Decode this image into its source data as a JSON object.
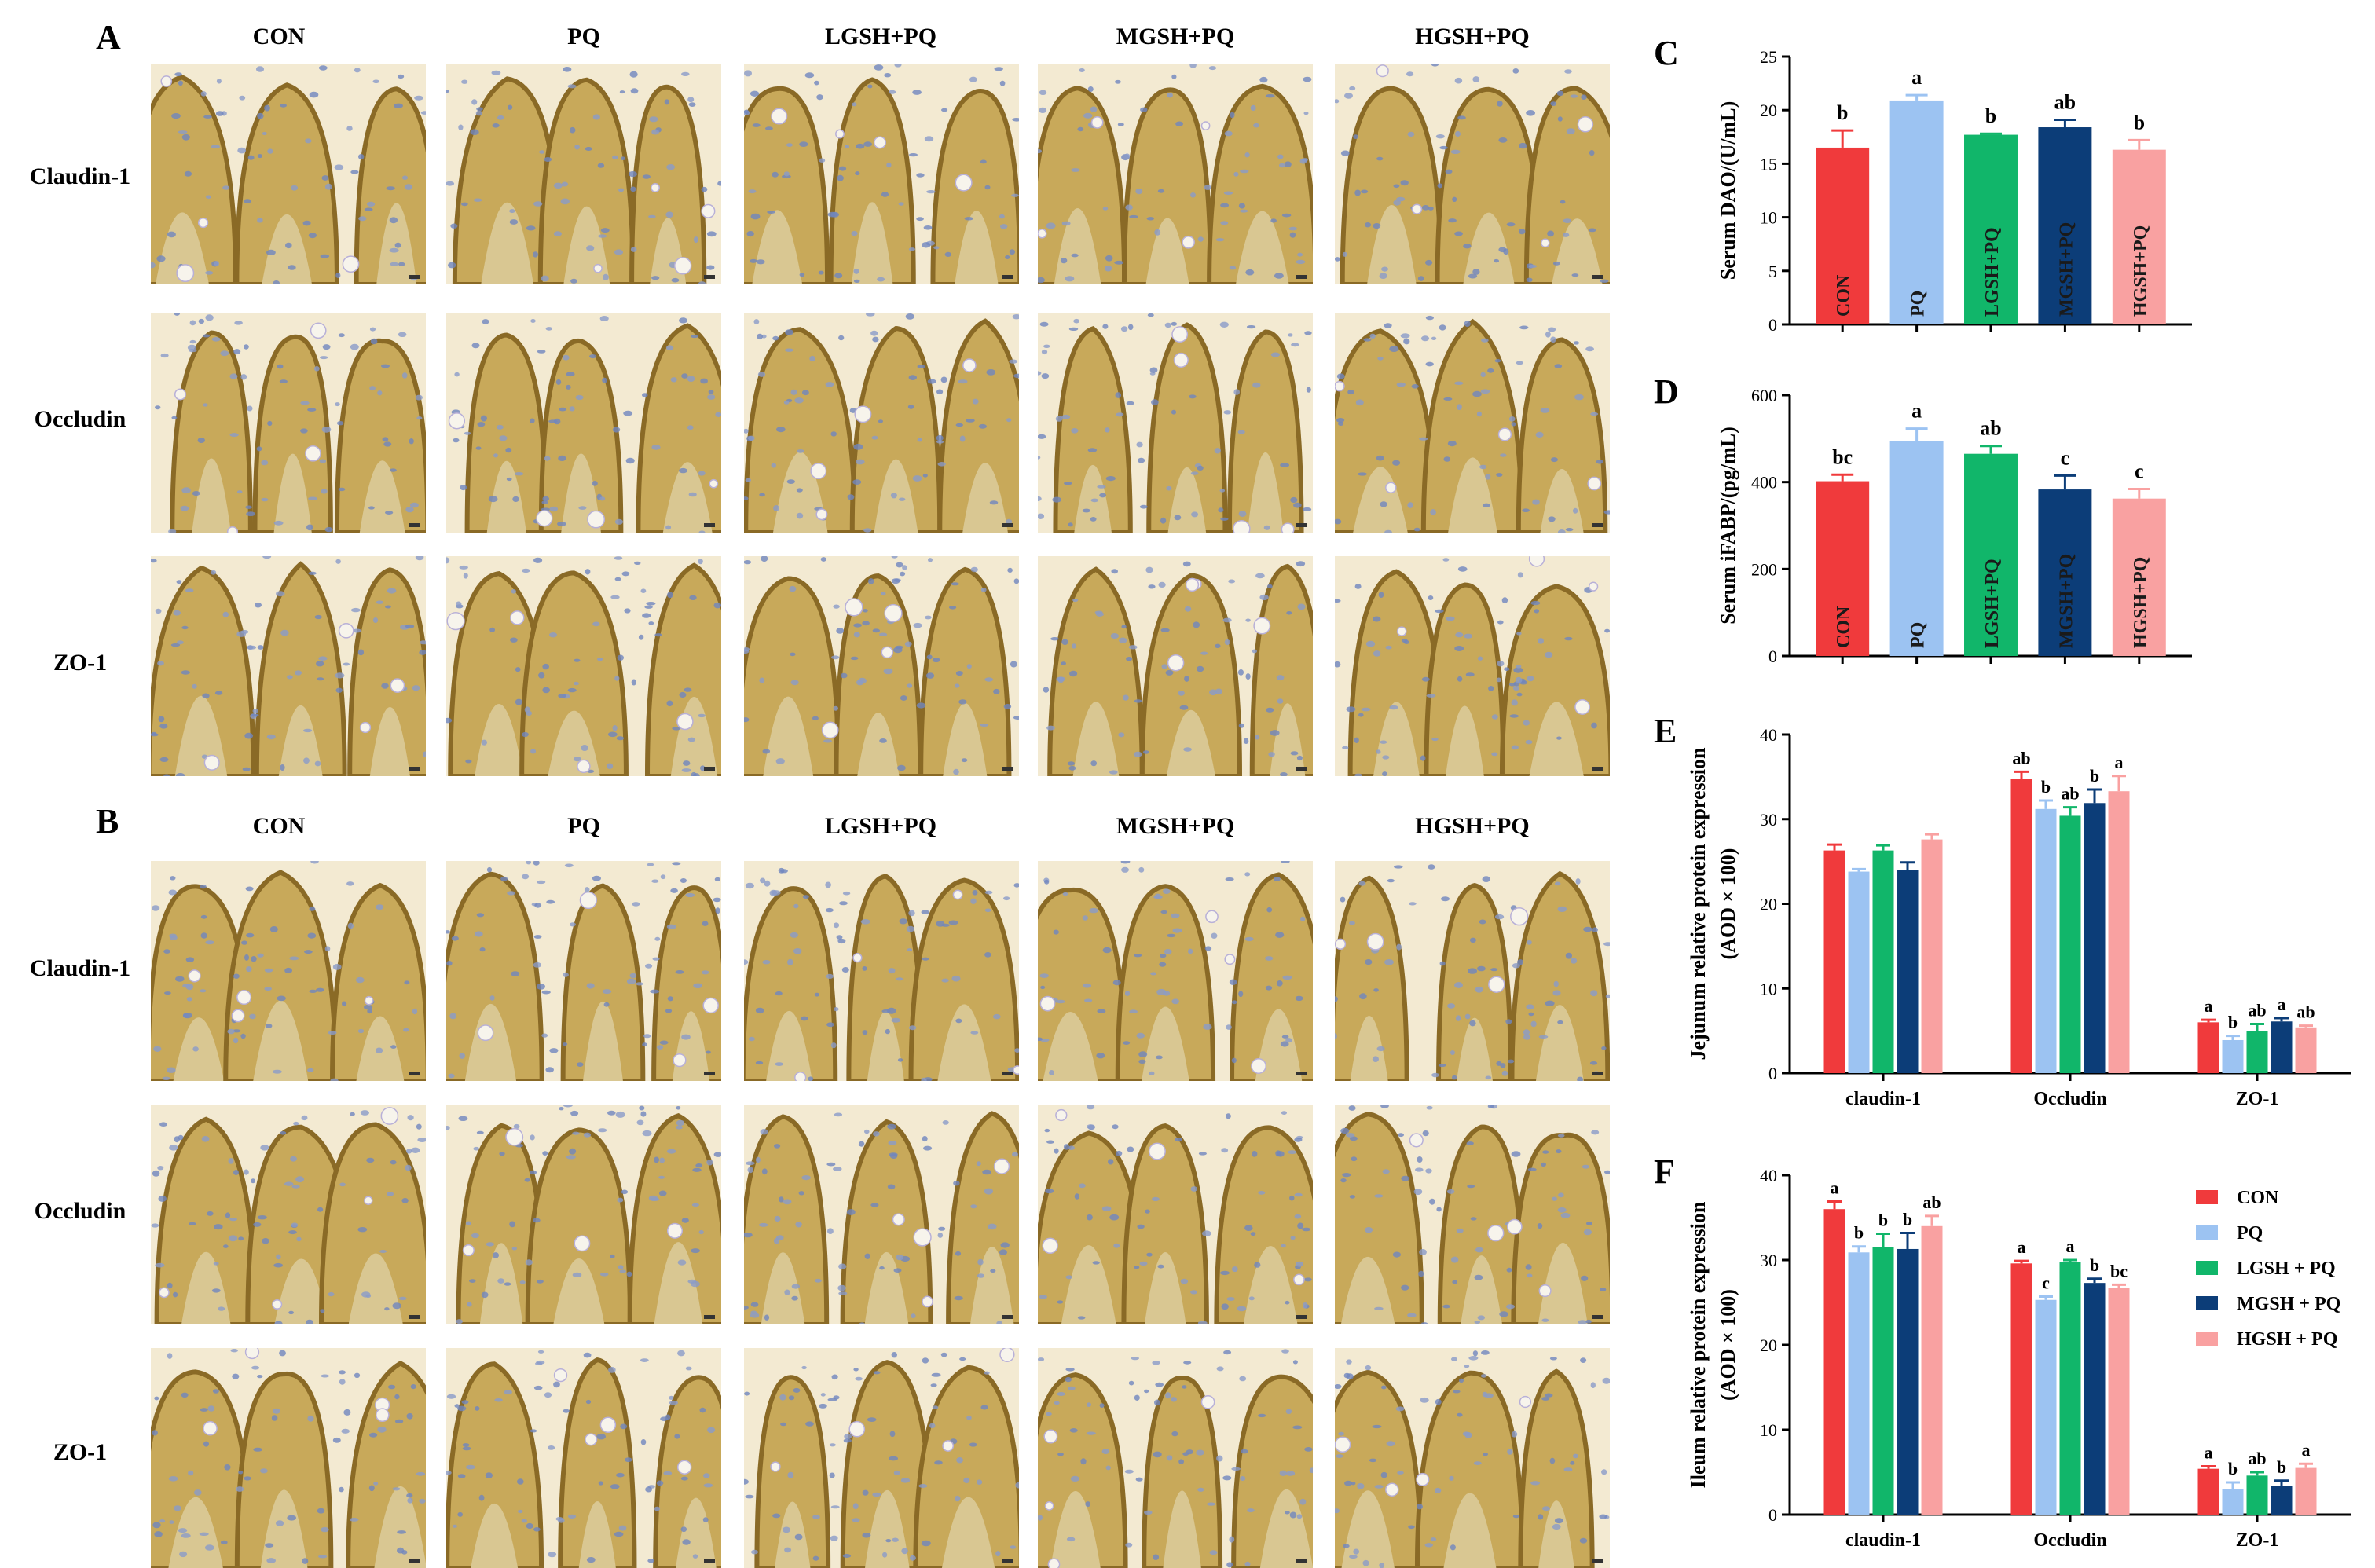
{
  "figure": {
    "panel_A": {
      "letter": "A",
      "columns": [
        "CON",
        "PQ",
        "LGSH+PQ",
        "MGSH+PQ",
        "HGSH+PQ"
      ],
      "rows": [
        "Claudin-1",
        "Occludin",
        "ZO-1"
      ]
    },
    "panel_B": {
      "letter": "B",
      "columns": [
        "CON",
        "PQ",
        "LGSH+PQ",
        "MGSH+PQ",
        "HGSH+PQ"
      ],
      "rows": [
        "Claudin-1",
        "Occludin",
        "ZO-1"
      ]
    },
    "series_colors": {
      "CON": "#f03a3c",
      "PQ": "#9cc3f2",
      "LGSH+PQ": "#11b66a",
      "MGSH+PQ": "#0c3d78",
      "HGSH+PQ": "#f9a1a1"
    }
  },
  "chart_data": [
    {
      "panel": "C",
      "type": "bar",
      "ylabel": "Serum DAO/(U/mL)",
      "ylim": [
        0,
        25
      ],
      "yticks": [
        "0",
        "5",
        "10",
        "15",
        "20",
        "25"
      ],
      "categories": [
        "CON",
        "PQ",
        "LGSH+PQ",
        "MGSH+PQ",
        "HGSH+PQ"
      ],
      "values": [
        16.5,
        20.9,
        17.7,
        18.4,
        16.3
      ],
      "errors": [
        1.6,
        0.5,
        0.1,
        0.7,
        0.9
      ],
      "letters": [
        "b",
        "a",
        "b",
        "ab",
        "b"
      ],
      "in_bar_labels": true
    },
    {
      "panel": "D",
      "type": "bar",
      "ylabel": "Serum iFABP/(pg/mL)",
      "ylim": [
        0,
        600
      ],
      "yticks": [
        "0",
        "200",
        "400",
        "600"
      ],
      "categories": [
        "CON",
        "PQ",
        "LGSH+PQ",
        "MGSH+PQ",
        "HGSH+PQ"
      ],
      "values": [
        402,
        495,
        465,
        383,
        362
      ],
      "errors": [
        15,
        28,
        18,
        32,
        22
      ],
      "letters": [
        "bc",
        "a",
        "ab",
        "c",
        "c"
      ],
      "in_bar_labels": true
    },
    {
      "panel": "E",
      "type": "bar",
      "ylabel": "Jejunum relative protein expression",
      "ylabel2": "(AOD × 100)",
      "ylim": [
        0,
        40
      ],
      "yticks": [
        "0",
        "10",
        "20",
        "30",
        "40"
      ],
      "categories": [
        "claudin-1",
        "Occludin",
        "ZO-1"
      ],
      "series": [
        {
          "values": [
            26.3,
            34.8,
            6.0
          ],
          "errors": [
            0.7,
            0.8,
            0.3
          ],
          "letters": [
            "",
            "ab",
            "a"
          ]
        },
        {
          "values": [
            23.8,
            31.2,
            3.9
          ],
          "errors": [
            0.3,
            1.0,
            0.5
          ],
          "letters": [
            "",
            "b",
            "b"
          ]
        },
        {
          "values": [
            26.3,
            30.4,
            5.0
          ],
          "errors": [
            0.6,
            1.0,
            0.8
          ],
          "letters": [
            "",
            "ab",
            "ab"
          ]
        },
        {
          "values": [
            24.0,
            31.9,
            6.1
          ],
          "errors": [
            0.9,
            1.6,
            0.4
          ],
          "letters": [
            "",
            "b",
            "a"
          ]
        },
        {
          "values": [
            27.6,
            33.3,
            5.4
          ],
          "errors": [
            0.6,
            1.8,
            0.2
          ],
          "letters": [
            "",
            "a",
            "ab"
          ]
        }
      ]
    },
    {
      "panel": "F",
      "type": "bar",
      "ylabel": "Ileum relative protein expression",
      "ylabel2": "(AOD × 100)",
      "ylim": [
        0,
        40
      ],
      "yticks": [
        "0",
        "10",
        "20",
        "30",
        "40"
      ],
      "categories": [
        "claudin-1",
        "Occludin",
        "ZO-1"
      ],
      "legend": [
        "CON",
        "PQ",
        "LGSH + PQ",
        "MGSH + PQ",
        "HGSH + PQ"
      ],
      "legend_position": "right",
      "series": [
        {
          "values": [
            36.0,
            29.6,
            5.4
          ],
          "errors": [
            0.9,
            0.3,
            0.3
          ],
          "letters": [
            "a",
            "a",
            "a"
          ]
        },
        {
          "values": [
            30.9,
            25.3,
            3.0
          ],
          "errors": [
            0.7,
            0.4,
            0.8
          ],
          "letters": [
            "b",
            "c",
            "b"
          ]
        },
        {
          "values": [
            31.5,
            29.8,
            4.6
          ],
          "errors": [
            1.6,
            0.2,
            0.4
          ],
          "letters": [
            "b",
            "a",
            "ab"
          ]
        },
        {
          "values": [
            31.3,
            27.3,
            3.4
          ],
          "errors": [
            1.9,
            0.5,
            0.6
          ],
          "letters": [
            "b",
            "b",
            "b"
          ]
        },
        {
          "values": [
            34.0,
            26.7,
            5.5
          ],
          "errors": [
            1.2,
            0.4,
            0.5
          ],
          "letters": [
            "ab",
            "bc",
            "a"
          ]
        }
      ]
    }
  ]
}
